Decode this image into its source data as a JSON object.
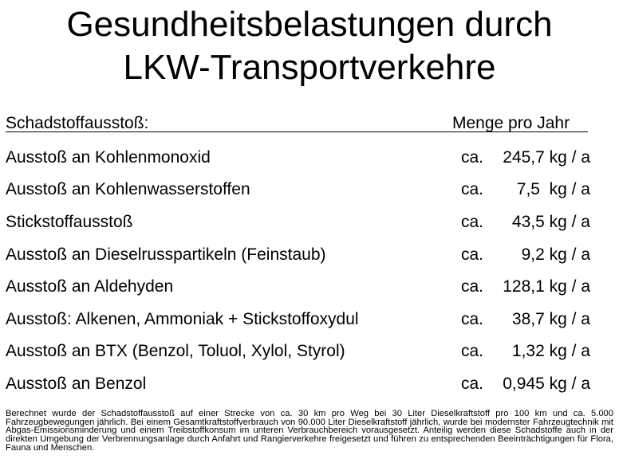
{
  "title": {
    "line1": "Gesundheitsbelastungen durch",
    "line2": "LKW-Transportverkehre"
  },
  "table": {
    "header_left": "Schadstoffausstoß:",
    "header_right": "Menge pro Jahr",
    "rows": [
      {
        "label": "Ausstoß an Kohlenmonoxid",
        "ca": "ca.",
        "amount": "245,7 kg / a"
      },
      {
        "label": "Ausstoß an Kohlenwasserstoffen",
        "ca": "ca.",
        "amount": "7,5  kg / a"
      },
      {
        "label": "Stickstoffausstoß",
        "ca": "ca.",
        "amount": "43,5 kg / a"
      },
      {
        "label": "Ausstoß an Dieselrusspartikeln (Feinstaub)",
        "ca": "ca.",
        "amount": "9,2 kg / a"
      },
      {
        "label": "Ausstoß an Aldehyden",
        "ca": "ca.",
        "amount": "128,1 kg / a"
      },
      {
        "label": "Ausstoß: Alkenen, Ammoniak + Stickstoffoxydul",
        "ca": "ca.",
        "amount": "38,7 kg / a"
      },
      {
        "label": "Ausstoß an BTX (Benzol, Toluol, Xylol, Styrol)",
        "ca": "ca.",
        "amount": "1,32 kg / a"
      },
      {
        "label": "Ausstoß an Benzol",
        "ca": "ca.",
        "amount": "0,945 kg / a"
      }
    ]
  },
  "footnote": "Berechnet wurde der Schadstoffausstoß auf einer Strecke von ca. 30 km pro Weg bei 30 Liter Dieselkraftstoff pro 100 km und ca. 5.000 Fahrzeugbewegungen jährlich. Bei einem Gesamtkraftstoffverbrauch von 90.000 Liter Dieselkraftstoff jährlich, wurde bei modernster Fahrzeugtechnik mit Abgas-Emissionsminderung und einem Treibstoffkonsum im unteren Verbrauchbereich vorausgesetzt. Anteilig werden diese Schadstoffe auch in der direkten Umgebung der Verbrennungsanlage durch Anfahrt und Rangierverkehre freigesetzt und führen zu entsprechenden Beeinträchtigungen für Flora, Fauna und Menschen."
}
